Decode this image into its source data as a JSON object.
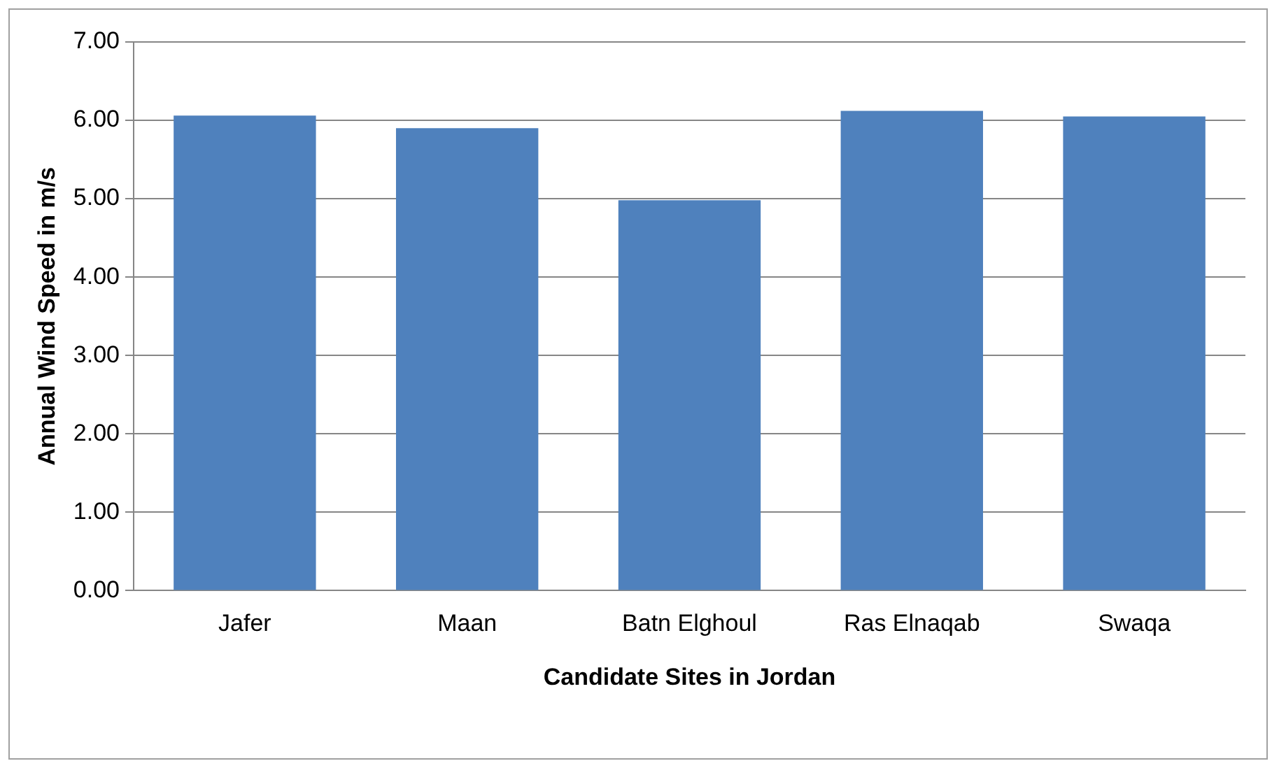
{
  "chart_data": {
    "type": "bar",
    "xlabel": "Candidate Sites in Jordan",
    "ylabel": "Annual Wind Speed in m/s",
    "categories": [
      "Jafer",
      "Maan",
      "Batn Elghoul",
      "Ras Elnaqab",
      "Swaqa"
    ],
    "values": [
      6.06,
      5.9,
      4.98,
      6.12,
      6.05
    ],
    "color": "#4f81bd",
    "ylim": [
      0,
      7
    ],
    "yticks": [
      {
        "value": 0,
        "label": "0.00"
      },
      {
        "value": 1,
        "label": "1.00"
      },
      {
        "value": 2,
        "label": "2.00"
      },
      {
        "value": 3,
        "label": "3.00"
      },
      {
        "value": 4,
        "label": "4.00"
      },
      {
        "value": 5,
        "label": "5.00"
      },
      {
        "value": 6,
        "label": "6.00"
      },
      {
        "value": 7,
        "label": "7.00"
      }
    ],
    "grid": "y"
  }
}
